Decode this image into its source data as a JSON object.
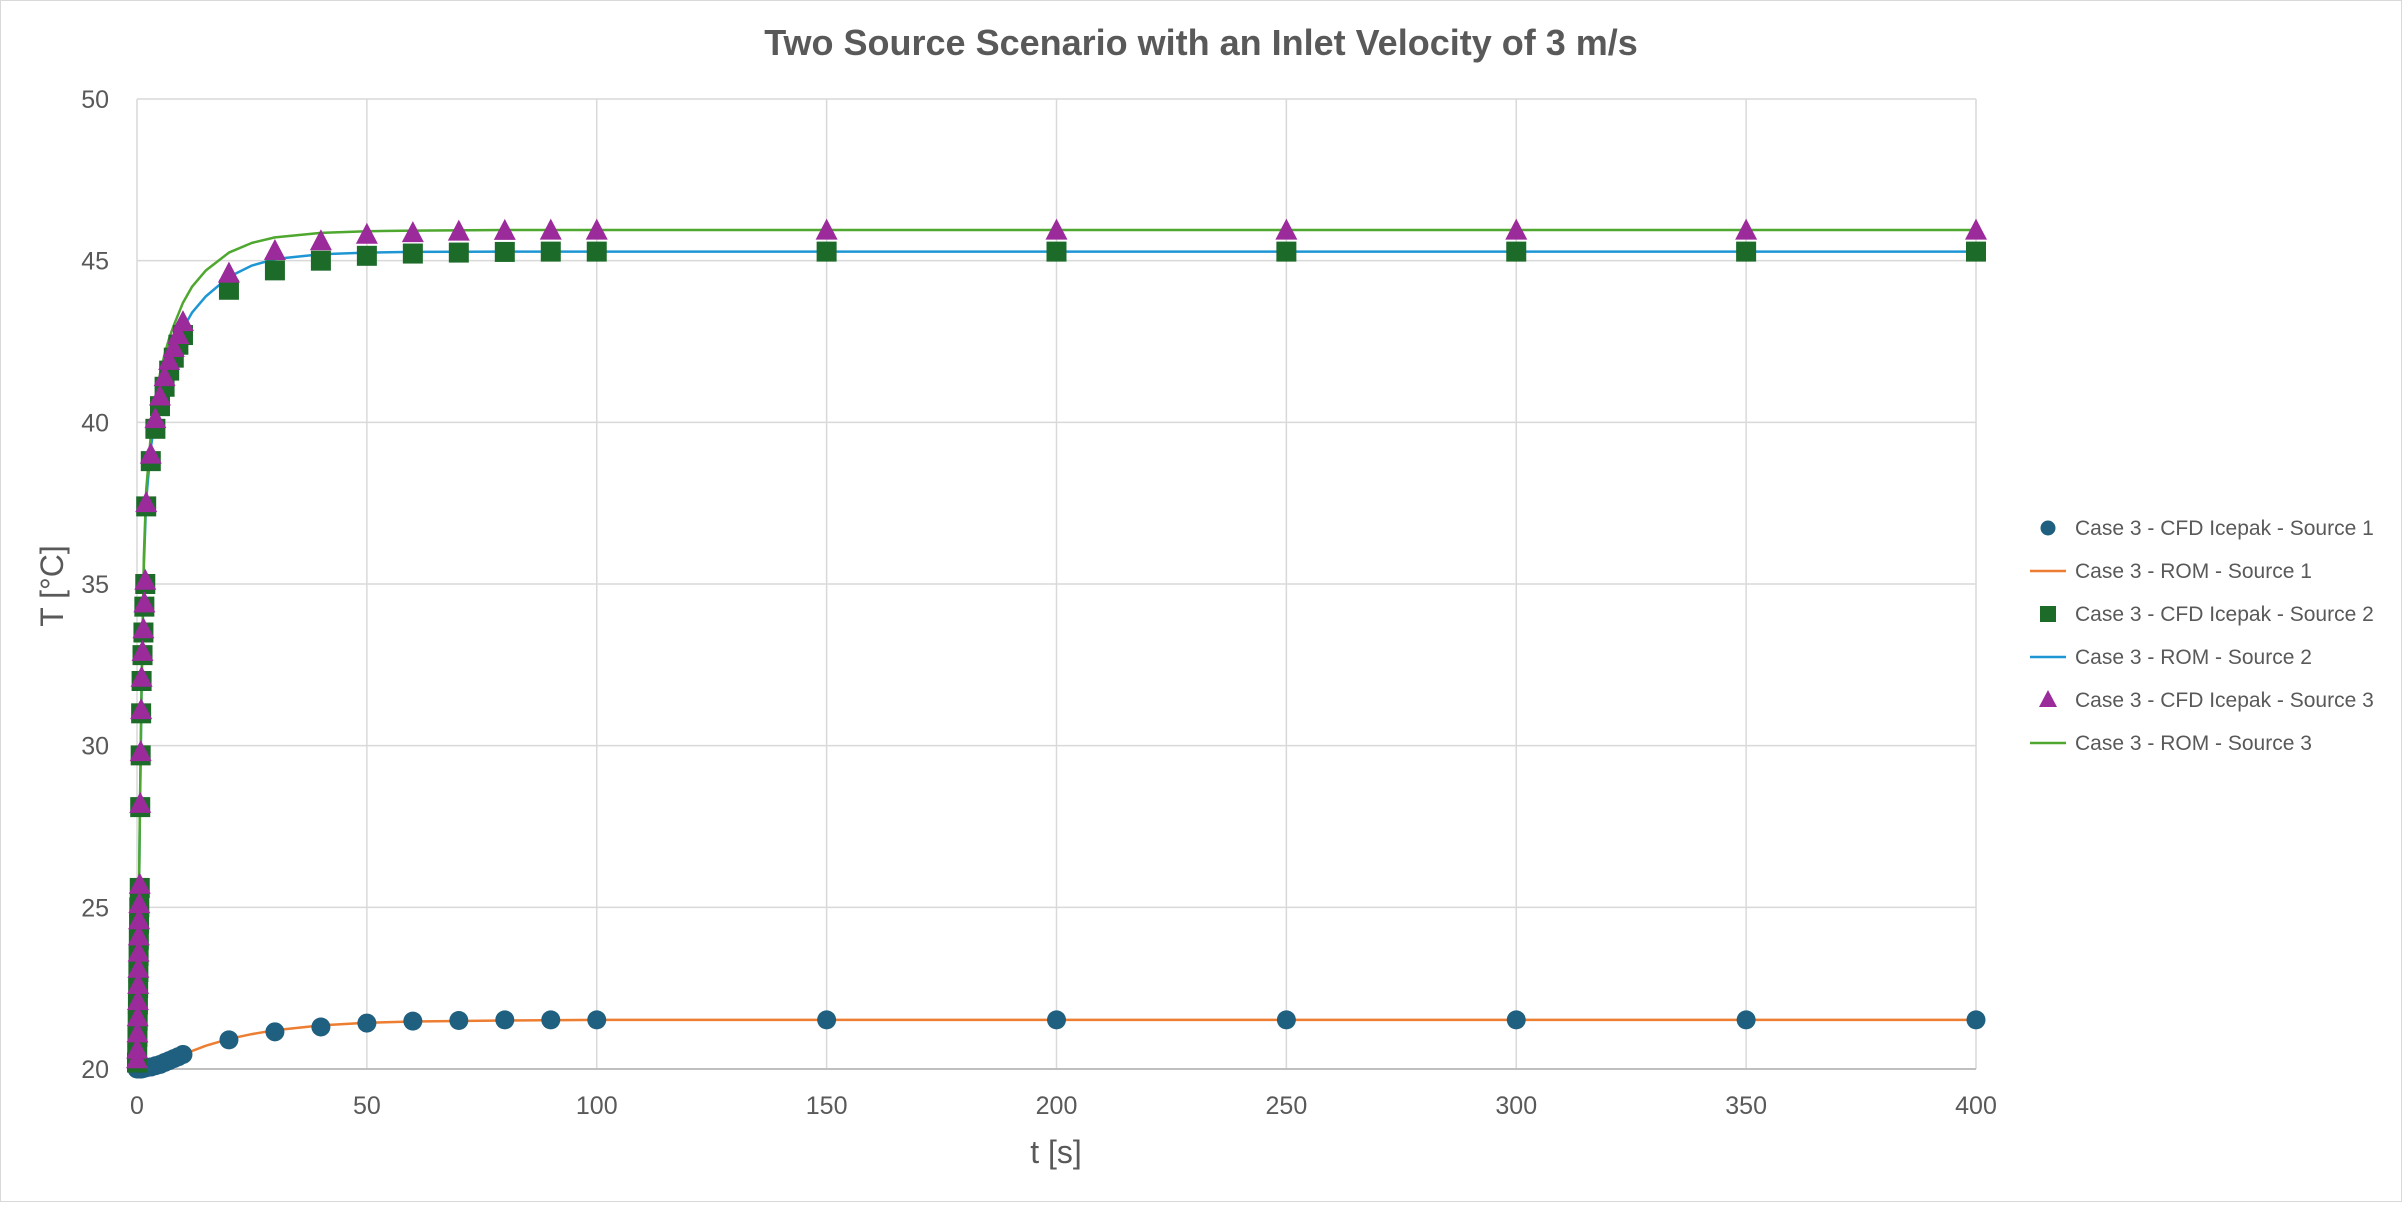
{
  "chart_data": {
    "type": "scatter",
    "title": "Two Source Scenario with an Inlet Velocity of 3 m/s",
    "xlabel": "t [s]",
    "ylabel": "T [°C]",
    "xlim": [
      0,
      400
    ],
    "ylim": [
      20,
      50
    ],
    "xticks": [
      0,
      50,
      100,
      150,
      200,
      250,
      300,
      350,
      400
    ],
    "yticks": [
      20,
      25,
      30,
      35,
      40,
      45,
      50
    ],
    "grid": true,
    "legend_position": "right",
    "series": [
      {
        "name": "Case 3 - CFD Icepak - Source 1",
        "kind": "markers",
        "marker": "circle",
        "color": "#1f5f7f",
        "x": [
          0,
          0.2,
          0.4,
          0.6,
          0.8,
          1,
          1.5,
          2,
          3,
          4,
          5,
          6,
          7,
          8,
          9,
          10,
          20,
          30,
          40,
          50,
          60,
          70,
          80,
          90,
          100,
          150,
          200,
          250,
          300,
          350,
          400
        ],
        "y": [
          20,
          20,
          20,
          20,
          20,
          20,
          20.02,
          20.04,
          20.06,
          20.1,
          20.14,
          20.2,
          20.26,
          20.32,
          20.38,
          20.45,
          20.9,
          21.15,
          21.3,
          21.42,
          21.48,
          21.5,
          21.52,
          21.52,
          21.52,
          21.52,
          21.52,
          21.52,
          21.52,
          21.52,
          21.52
        ]
      },
      {
        "name": "Case 3 - ROM - Source 1",
        "kind": "line",
        "color": "#ed7d31",
        "x": [
          0,
          2,
          4,
          6,
          8,
          10,
          15,
          20,
          25,
          30,
          40,
          50,
          60,
          80,
          100,
          150,
          200,
          300,
          400
        ],
        "y": [
          20,
          20.05,
          20.12,
          20.22,
          20.33,
          20.45,
          20.72,
          20.93,
          21.08,
          21.2,
          21.35,
          21.43,
          21.47,
          21.5,
          21.52,
          21.52,
          21.52,
          21.52,
          21.52
        ]
      },
      {
        "name": "Case 3 - CFD Icepak - Source 2",
        "kind": "markers",
        "marker": "square",
        "color": "#1d6b29",
        "x": [
          0,
          0.05,
          0.1,
          0.15,
          0.2,
          0.25,
          0.3,
          0.35,
          0.4,
          0.45,
          0.5,
          0.6,
          0.7,
          0.8,
          0.9,
          1,
          1.2,
          1.4,
          1.6,
          1.8,
          2,
          3,
          4,
          5,
          6,
          7,
          8,
          9,
          10,
          20,
          30,
          40,
          50,
          60,
          70,
          80,
          90,
          100,
          150,
          200,
          250,
          300,
          350,
          400
        ],
        "y": [
          20.2,
          20.5,
          21.0,
          21.5,
          22.0,
          22.5,
          23.0,
          23.5,
          24.0,
          24.5,
          25.0,
          25.6,
          28.1,
          29.7,
          31.0,
          32.0,
          32.8,
          33.5,
          34.3,
          35.0,
          37.4,
          38.8,
          39.8,
          40.5,
          41.1,
          41.6,
          42.0,
          42.4,
          42.7,
          44.1,
          44.7,
          45.0,
          45.15,
          45.22,
          45.25,
          45.27,
          45.28,
          45.28,
          45.28,
          45.28,
          45.28,
          45.28,
          45.28,
          45.28
        ]
      },
      {
        "name": "Case 3 - ROM - Source 2",
        "kind": "line",
        "color": "#1f96d4",
        "x": [
          0,
          0.3,
          0.6,
          1,
          1.5,
          2,
          3,
          4,
          5,
          6,
          7,
          8,
          10,
          12,
          15,
          20,
          25,
          30,
          40,
          50,
          60,
          80,
          100,
          150,
          200,
          300,
          400
        ],
        "y": [
          20,
          23.5,
          27.5,
          31.8,
          35.6,
          37.6,
          39.2,
          40.2,
          40.9,
          41.5,
          41.9,
          42.3,
          42.9,
          43.4,
          43.9,
          44.5,
          44.85,
          45.05,
          45.2,
          45.25,
          45.27,
          45.28,
          45.28,
          45.28,
          45.28,
          45.28,
          45.28
        ]
      },
      {
        "name": "Case 3 - CFD Icepak - Source 3",
        "kind": "markers",
        "marker": "triangle",
        "color": "#9b2a9b",
        "x": [
          0,
          0.05,
          0.1,
          0.15,
          0.2,
          0.25,
          0.3,
          0.35,
          0.4,
          0.45,
          0.5,
          0.6,
          0.7,
          0.8,
          0.9,
          1,
          1.2,
          1.4,
          1.6,
          1.8,
          2,
          3,
          4,
          5,
          6,
          7,
          8,
          9,
          10,
          20,
          30,
          40,
          50,
          60,
          70,
          80,
          90,
          100,
          150,
          200,
          250,
          300,
          350,
          400
        ],
        "y": [
          20.3,
          20.6,
          21.1,
          21.6,
          22.1,
          22.6,
          23.1,
          23.6,
          24.1,
          24.6,
          25.1,
          25.7,
          28.2,
          29.8,
          31.1,
          32.1,
          32.9,
          33.6,
          34.4,
          35.1,
          37.5,
          39.0,
          40.1,
          40.8,
          41.4,
          41.9,
          42.3,
          42.7,
          43.1,
          44.6,
          45.3,
          45.6,
          45.8,
          45.85,
          45.9,
          45.92,
          45.93,
          45.93,
          45.93,
          45.93,
          45.93,
          45.93,
          45.93,
          45.93
        ]
      },
      {
        "name": "Case 3 - ROM - Source 3",
        "kind": "line",
        "color": "#4ea72e",
        "x": [
          0,
          0.3,
          0.6,
          1,
          1.5,
          2,
          3,
          4,
          5,
          6,
          7,
          8,
          10,
          12,
          15,
          20,
          25,
          30,
          40,
          50,
          60,
          80,
          100,
          150,
          200,
          300,
          400
        ],
        "y": [
          20,
          23.6,
          27.7,
          32.0,
          35.9,
          37.9,
          39.6,
          40.7,
          41.5,
          42.1,
          42.6,
          43.0,
          43.7,
          44.2,
          44.7,
          45.25,
          45.55,
          45.72,
          45.86,
          45.91,
          45.93,
          45.95,
          45.95,
          45.95,
          45.95,
          45.95,
          45.95
        ]
      }
    ]
  }
}
